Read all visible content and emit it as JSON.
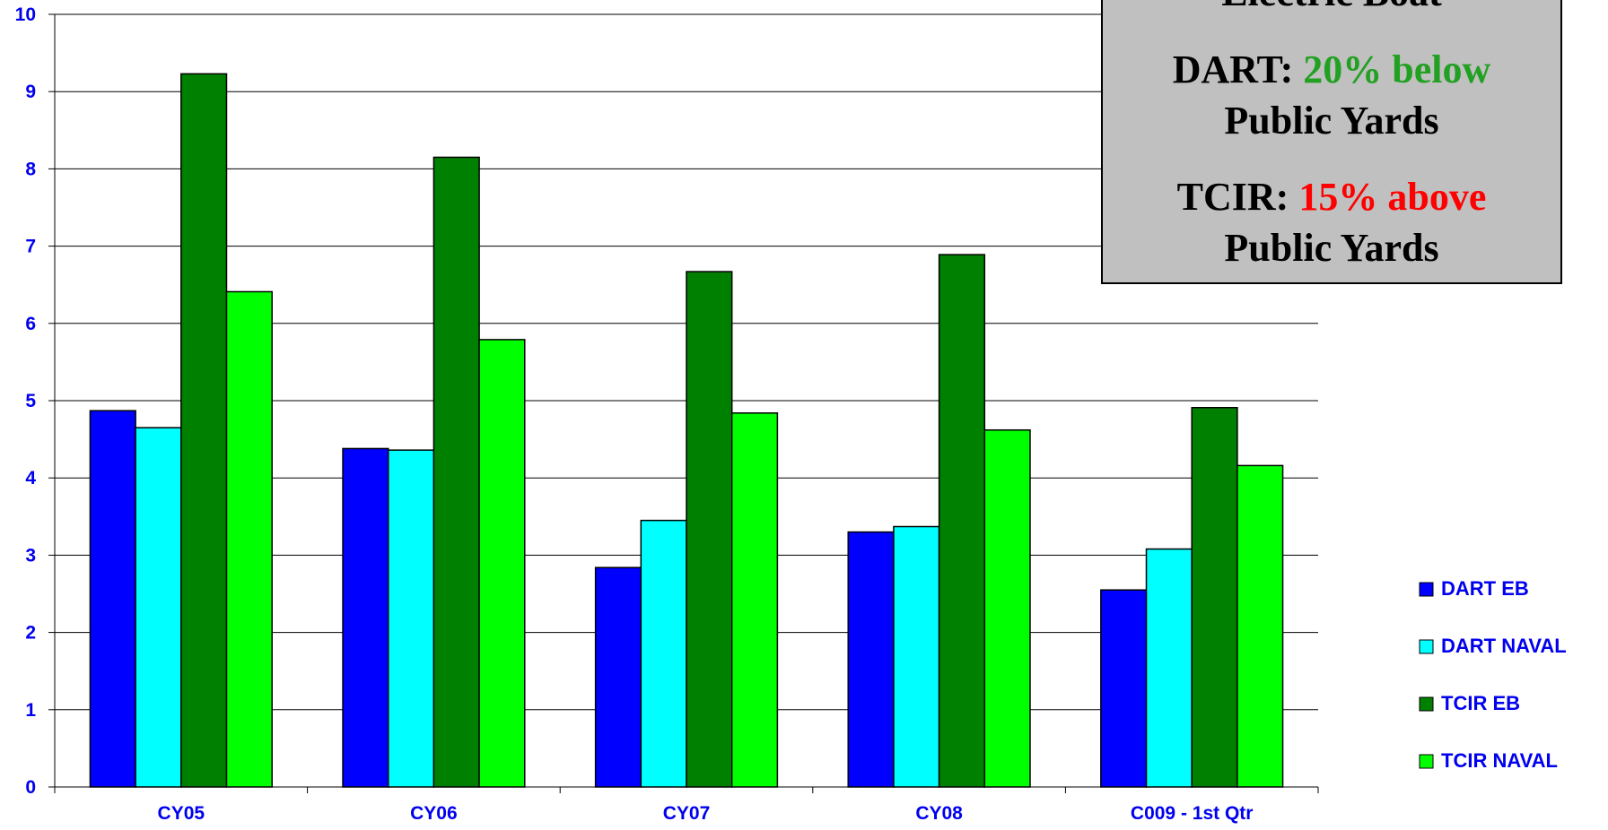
{
  "chart_data": {
    "type": "bar",
    "categories": [
      "CY05",
      "CY06",
      "CY07",
      "CY08",
      "C009 - 1st Qtr"
    ],
    "series": [
      {
        "name": "DART EB",
        "color": "#0000ff",
        "values": [
          4.87,
          4.38,
          2.84,
          3.3,
          2.55
        ]
      },
      {
        "name": "DART NAVAL",
        "color": "#00ffff",
        "values": [
          4.65,
          4.36,
          3.45,
          3.37,
          3.08
        ]
      },
      {
        "name": "TCIR EB",
        "color": "#008000",
        "values": [
          9.23,
          8.15,
          6.67,
          6.89,
          4.91
        ]
      },
      {
        "name": "TCIR NAVAL",
        "color": "#00ff00",
        "values": [
          6.41,
          5.79,
          4.84,
          4.62,
          4.16
        ]
      }
    ],
    "ylim": [
      0,
      10
    ],
    "yticks": [
      0,
      1,
      2,
      3,
      4,
      5,
      6,
      7,
      8,
      9,
      10
    ],
    "grid": true,
    "legend": "right",
    "annotation": {
      "heading": "Electric Boat",
      "items": [
        {
          "label": "DART:",
          "highlight": "20% below",
          "color": "#22a022",
          "tail": "Public Yards"
        },
        {
          "label": "TCIR:",
          "highlight": "15% above",
          "color": "#ff0000",
          "tail": "Public Yards"
        }
      ]
    }
  }
}
